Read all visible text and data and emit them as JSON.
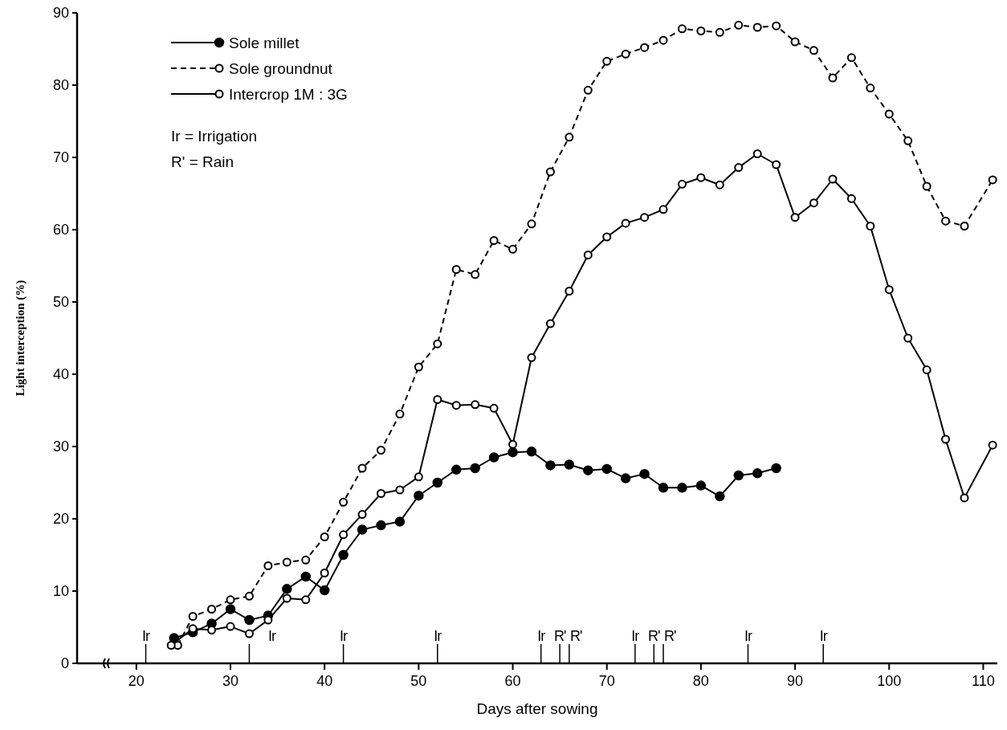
{
  "chart_data": {
    "type": "line",
    "xlabel": "Days after sowing",
    "ylabel": "Light interception (%)",
    "xlim": [
      13.7,
      111.5
    ],
    "xticks": [
      20,
      30,
      40,
      50,
      60,
      70,
      80,
      90,
      100,
      110
    ],
    "ylim": [
      0,
      90
    ],
    "yticks": [
      0,
      10,
      20,
      30,
      40,
      50,
      60,
      70,
      80,
      90
    ],
    "grid": false,
    "legend": "top left",
    "series": [
      {
        "name": "Sole millet",
        "color": "#000000",
        "marker": "circle",
        "line_style": "solid",
        "x": [
          24,
          26,
          28,
          30,
          32,
          34,
          36,
          38,
          40,
          42,
          44,
          46,
          48,
          50,
          52,
          54,
          56,
          58,
          60,
          62,
          64,
          66,
          68,
          70,
          72,
          74,
          76,
          78,
          80,
          82,
          84,
          86,
          88
        ],
        "values": [
          3.5,
          4.3,
          5.5,
          7.5,
          6.0,
          6.6,
          10.3,
          12,
          10.1,
          15,
          18.5,
          19.1,
          19.6,
          23.2,
          25,
          26.8,
          27,
          28.5,
          29.2,
          29.3,
          27.4,
          27.5,
          26.7,
          26.9,
          25.6,
          26.2,
          24.3,
          24.3,
          24.6,
          23.1,
          26,
          26.3,
          27
        ]
      },
      {
        "name": "Sole groundnut",
        "color": "#000000",
        "marker": "circle-open",
        "line_style": "dashed",
        "x": [
          24.4,
          26,
          28,
          30,
          32,
          34,
          36,
          38,
          40,
          42,
          44,
          46,
          48,
          50,
          52,
          54,
          56,
          58,
          60,
          62,
          64,
          66,
          68,
          70,
          72,
          74,
          76,
          78,
          80,
          82,
          84,
          86,
          88,
          90,
          92,
          94,
          96,
          98,
          100,
          102,
          104,
          106,
          108,
          111
        ],
        "values": [
          2.5,
          6.5,
          7.5,
          8.8,
          9.3,
          13.5,
          14,
          14.3,
          17.5,
          22.3,
          27,
          29.5,
          34.5,
          41,
          44.2,
          54.5,
          53.8,
          58.5,
          57.3,
          60.8,
          68,
          72.8,
          79.3,
          83.3,
          84.3,
          85.2,
          86.2,
          87.8,
          87.5,
          87.3,
          88.3,
          88,
          88.2,
          86,
          84.8,
          81,
          83.8,
          79.6,
          76,
          72.3,
          66,
          61.2,
          60.5,
          66.9
        ]
      },
      {
        "name": "Intercrop 1M : 3G",
        "color": "#000000",
        "marker": "circle-open",
        "line_style": "solid",
        "x": [
          23.7,
          26,
          28,
          30,
          32,
          34,
          36,
          38,
          40,
          42,
          44,
          46,
          48,
          50,
          52,
          54,
          56,
          58,
          60,
          62,
          64,
          66,
          68,
          70,
          72,
          74,
          76,
          78,
          80,
          82,
          84,
          86,
          88,
          90,
          92,
          94,
          96,
          98,
          100,
          102,
          104,
          106,
          108,
          111
        ],
        "values": [
          2.5,
          4.8,
          4.6,
          5.1,
          4.1,
          6.0,
          9.0,
          8.8,
          12.5,
          17.8,
          20.6,
          23.5,
          24,
          25.8,
          36.5,
          35.7,
          35.8,
          35.3,
          30.3,
          42.3,
          47,
          51.5,
          56.5,
          59,
          60.9,
          61.7,
          62.8,
          66.3,
          67.2,
          66.2,
          68.6,
          70.5,
          69,
          61.7,
          63.7,
          67,
          64.3,
          60.5,
          51.7,
          45,
          40.6,
          31,
          22.9,
          30.2
        ]
      }
    ],
    "annotations": [
      "Ir = Irrigation",
      "R' = Rain"
    ],
    "ref_lines": [
      {
        "axis": "x",
        "value": 21,
        "label": "Ir"
      },
      {
        "axis": "x",
        "value": 32,
        "label": "Ir"
      },
      {
        "axis": "x",
        "value": 42,
        "label": "Ir"
      },
      {
        "axis": "x",
        "value": 52,
        "label": "Ir"
      },
      {
        "axis": "x",
        "value": 63,
        "label": "Ir"
      },
      {
        "axis": "x",
        "value": 65,
        "label": "R'"
      },
      {
        "axis": "x",
        "value": 66,
        "label": "R'"
      },
      {
        "axis": "x",
        "value": 73,
        "label": "Ir"
      },
      {
        "axis": "x",
        "value": 75,
        "label": "R'"
      },
      {
        "axis": "x",
        "value": 76,
        "label": "R'"
      },
      {
        "axis": "x",
        "value": 85,
        "label": "Ir"
      },
      {
        "axis": "x",
        "value": 93,
        "label": "Ir"
      }
    ]
  }
}
